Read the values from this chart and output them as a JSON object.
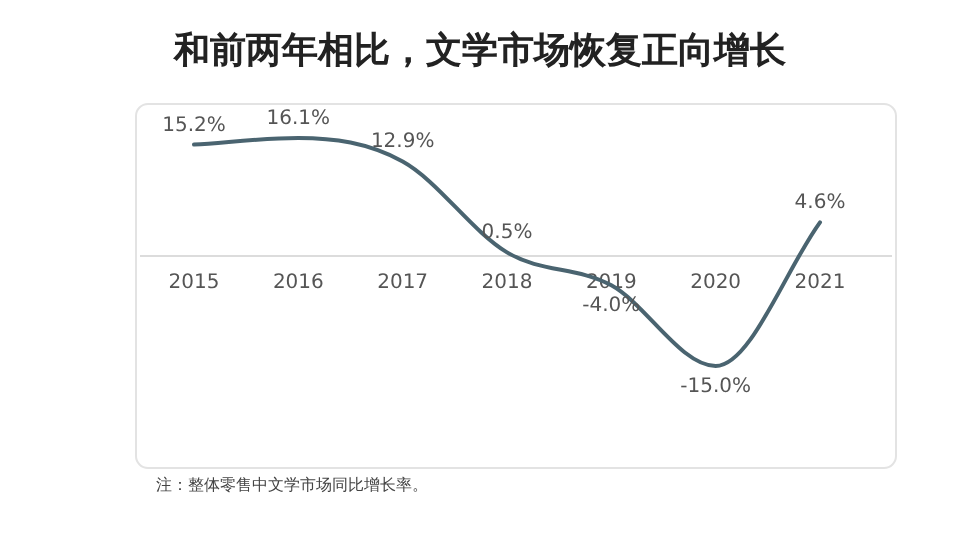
{
  "chart_data": {
    "type": "line",
    "title": "和前两年相比，文学市场恢复正向增长",
    "categories": [
      "2015",
      "2016",
      "2017",
      "2018",
      "2019",
      "2020",
      "2021"
    ],
    "series": [
      {
        "color": "#4a6470",
        "values": [
          15.2,
          16.1,
          12.9,
          0.5,
          -4.0,
          -15.0,
          4.6
        ],
        "value_labels": [
          "15.2%",
          "16.1%",
          "12.9%",
          "0.5%",
          "-4.0%",
          "-15.0%",
          "4.6%"
        ]
      }
    ],
    "annotations": [
      "注：整体零售中文学市场同比增长率。"
    ]
  }
}
